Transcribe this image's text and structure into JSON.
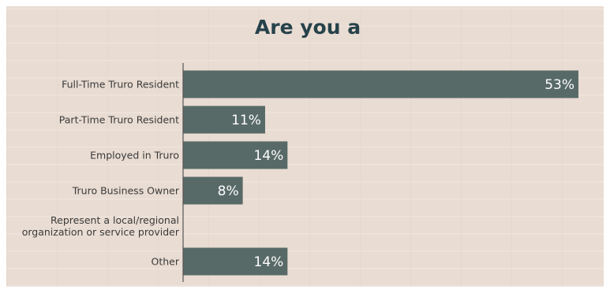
{
  "chart_data": {
    "type": "bar",
    "orientation": "horizontal",
    "title": "Are you a",
    "categories": [
      [
        "Full-Time Truro Resident"
      ],
      [
        "Part-Time Truro Resident"
      ],
      [
        "Employed in Truro"
      ],
      [
        "Truro Business Owner"
      ],
      [
        "Represent a local/regional",
        "organization or service provider"
      ],
      [
        "Other"
      ]
    ],
    "values": [
      53,
      11,
      14,
      8,
      0,
      14
    ],
    "value_labels": [
      "53%",
      "11%",
      "14%",
      "8%",
      "",
      "14%"
    ],
    "xlim": [
      0,
      53
    ],
    "grid": false,
    "legend": "none",
    "colors": {
      "bar": "#586a67",
      "title": "#26424a",
      "axis": "#555555",
      "label": "#3a3a3a"
    }
  }
}
